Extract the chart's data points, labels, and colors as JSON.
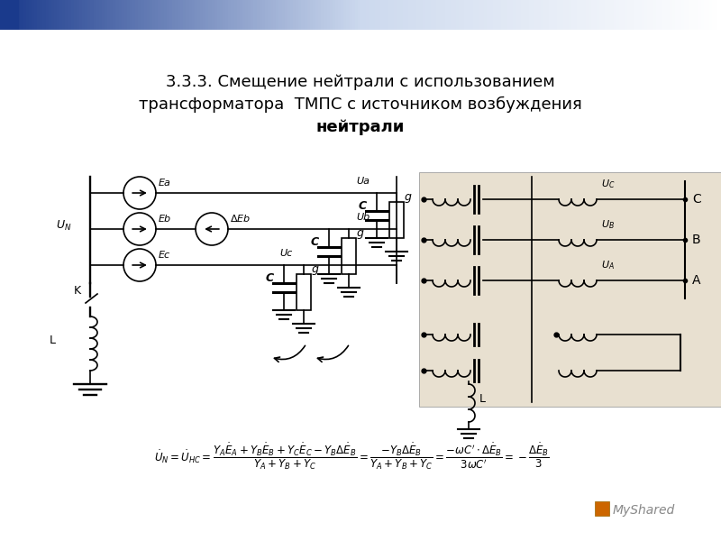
{
  "title_line1": "3.3.3. Смещение нейтрали с использованием",
  "title_line2": "трансформатора  ТМПС с источником возбуждения",
  "title_line3": "нейтрали",
  "title_fontsize": 13,
  "bg_color": "#ffffff",
  "slide_header_left": "#2244aa",
  "slide_header_right": "#aabbdd"
}
